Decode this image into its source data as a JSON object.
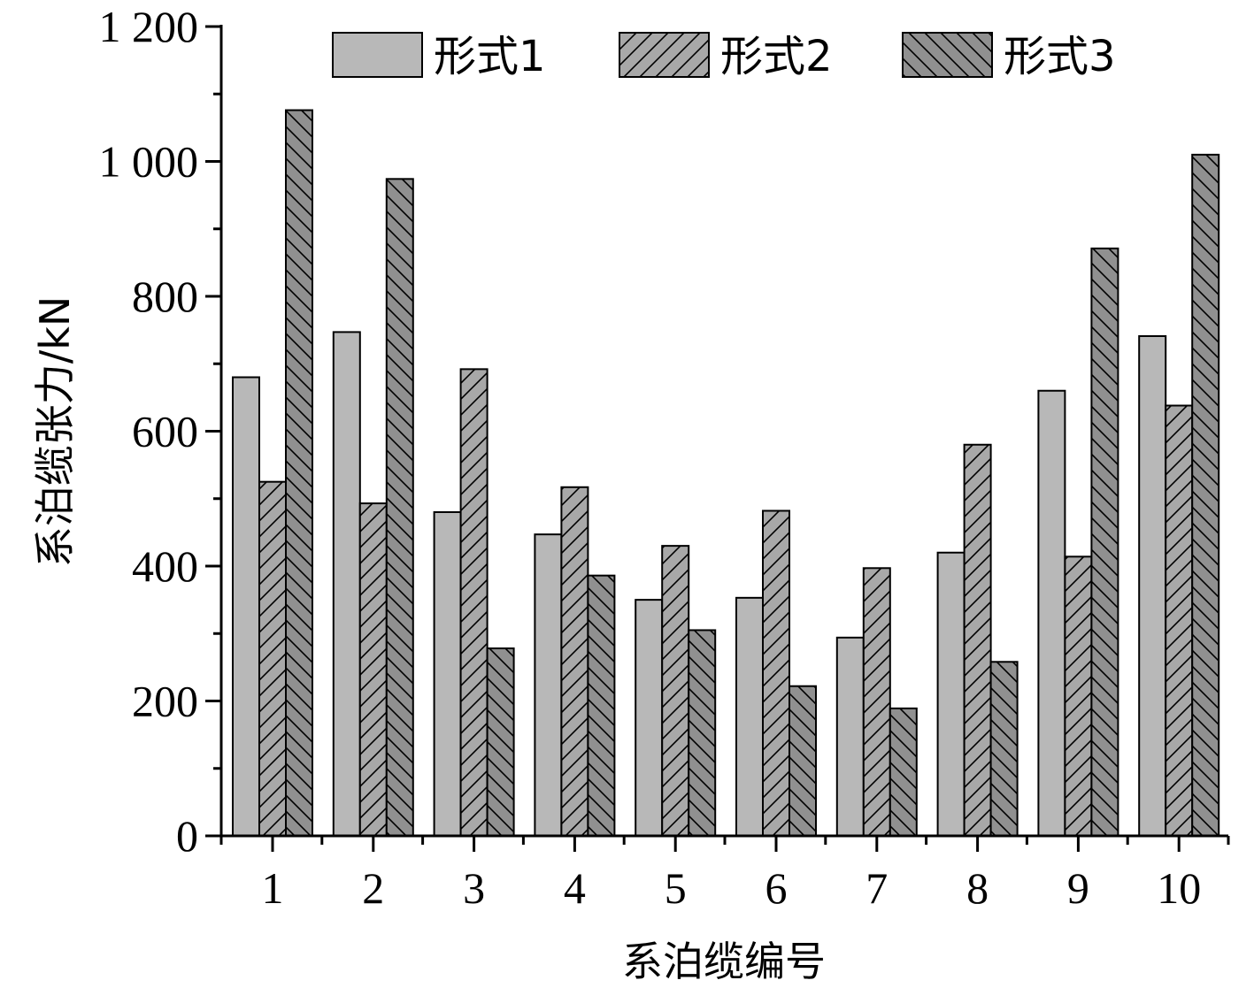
{
  "chart_data": {
    "type": "bar",
    "title": "",
    "xlabel": "系泊缆编号",
    "ylabel": "系泊缆张力/kN",
    "categories": [
      "1",
      "2",
      "3",
      "4",
      "5",
      "6",
      "7",
      "8",
      "9",
      "10"
    ],
    "series": [
      {
        "name": "形式1",
        "values": [
          680,
          747,
          480,
          447,
          350,
          353,
          294,
          420,
          660,
          741
        ],
        "fill": "#b8b8b8",
        "hatch": "none"
      },
      {
        "name": "形式2",
        "values": [
          525,
          493,
          692,
          517,
          430,
          482,
          397,
          580,
          414,
          638
        ],
        "fill": "#a8a8a8",
        "hatch": "forward"
      },
      {
        "name": "形式3",
        "values": [
          1076,
          974,
          278,
          386,
          305,
          222,
          189,
          258,
          871,
          1010
        ],
        "fill": "#909090",
        "hatch": "backward"
      }
    ],
    "ylim": [
      0,
      1200
    ],
    "yticks": [
      "0",
      "200",
      "400",
      "600",
      "800",
      "1 000",
      "1 200"
    ],
    "grid": false,
    "legend_position": "top"
  }
}
